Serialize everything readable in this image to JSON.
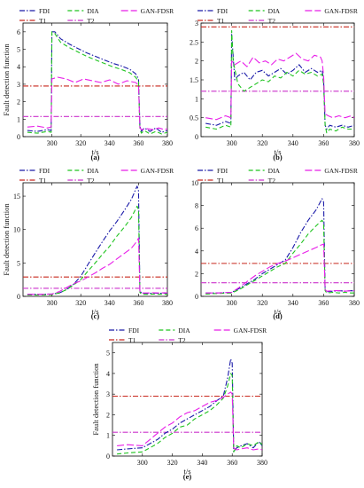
{
  "chart_data": [
    {
      "type": "line",
      "panel": "a",
      "xlabel": "t/s",
      "ylabel": "Fault detection function",
      "xlim": [
        280,
        380
      ],
      "ylim": [
        0,
        6.5
      ],
      "xticks": [
        300,
        320,
        340,
        360,
        380
      ],
      "yticks": [
        0,
        1,
        2,
        3,
        4,
        5,
        6
      ],
      "thresholds": {
        "T1": 2.9,
        "T2": 1.15
      },
      "series": [
        {
          "name": "FDI",
          "x": [
            283,
            290,
            297,
            299.5,
            300,
            302,
            306,
            312,
            318,
            324,
            330,
            336,
            342,
            348,
            354,
            358,
            360,
            361,
            362,
            364,
            368,
            372,
            376,
            380
          ],
          "y": [
            0.35,
            0.3,
            0.4,
            0.35,
            6.0,
            6.0,
            5.6,
            5.3,
            5.05,
            4.8,
            4.6,
            4.4,
            4.2,
            4.05,
            3.85,
            3.6,
            3.3,
            0.6,
            0.3,
            0.5,
            0.3,
            0.5,
            0.25,
            0.35
          ]
        },
        {
          "name": "DIA",
          "x": [
            283,
            290,
            297,
            299.5,
            300,
            302,
            306,
            312,
            318,
            324,
            330,
            336,
            342,
            348,
            354,
            358,
            360,
            361,
            362,
            364,
            368,
            372,
            376,
            380
          ],
          "y": [
            0.25,
            0.2,
            0.3,
            0.25,
            6.0,
            5.9,
            5.4,
            5.1,
            4.85,
            4.6,
            4.4,
            4.2,
            4.0,
            3.85,
            3.65,
            3.4,
            3.15,
            0.4,
            0.2,
            0.35,
            0.15,
            0.3,
            0.15,
            0.25
          ]
        },
        {
          "name": "GAN-FDSR",
          "x": [
            283,
            290,
            297,
            299.5,
            300,
            304,
            310,
            316,
            322,
            328,
            334,
            340,
            346,
            352,
            358,
            360,
            361,
            362,
            366,
            370,
            374,
            378,
            380
          ],
          "y": [
            0.55,
            0.6,
            0.5,
            0.55,
            3.3,
            3.4,
            3.3,
            3.1,
            3.3,
            3.2,
            3.1,
            3.25,
            3.0,
            3.2,
            3.1,
            2.95,
            0.5,
            0.4,
            0.45,
            0.4,
            0.5,
            0.4,
            0.45
          ]
        }
      ]
    },
    {
      "type": "line",
      "panel": "b",
      "xlabel": "t/s",
      "ylabel": "",
      "xlim": [
        280,
        380
      ],
      "ylim": [
        0,
        3
      ],
      "xticks": [
        300,
        320,
        340,
        360,
        380
      ],
      "yticks": [
        0,
        0.5,
        1,
        1.5,
        2,
        2.5,
        3
      ],
      "thresholds": {
        "T1": 2.9,
        "T2": 1.2
      },
      "series": [
        {
          "name": "FDI",
          "x": [
            283,
            290,
            296,
            299.5,
            300,
            302,
            304,
            308,
            312,
            316,
            320,
            324,
            328,
            332,
            336,
            340,
            344,
            348,
            352,
            356,
            359,
            360,
            361,
            362,
            364,
            368,
            372,
            376,
            380
          ],
          "y": [
            0.35,
            0.3,
            0.4,
            0.35,
            2.7,
            1.5,
            1.6,
            1.7,
            1.5,
            1.7,
            1.75,
            1.6,
            1.7,
            1.8,
            1.65,
            1.75,
            1.9,
            1.7,
            1.8,
            1.7,
            1.75,
            1.5,
            0.3,
            0.2,
            0.3,
            0.25,
            0.3,
            0.25,
            0.3
          ]
        },
        {
          "name": "DIA",
          "x": [
            283,
            290,
            296,
            299.5,
            300,
            301,
            304,
            308,
            312,
            316,
            320,
            324,
            328,
            332,
            336,
            340,
            344,
            348,
            352,
            356,
            359,
            360,
            361,
            362,
            364,
            368,
            372,
            376,
            380
          ],
          "y": [
            0.25,
            0.2,
            0.3,
            0.25,
            2.8,
            2.0,
            1.4,
            1.2,
            1.3,
            1.4,
            1.5,
            1.45,
            1.6,
            1.55,
            1.7,
            1.6,
            1.75,
            1.65,
            1.7,
            1.6,
            1.65,
            1.4,
            0.3,
            0.1,
            0.2,
            0.15,
            0.25,
            0.2,
            0.2
          ]
        },
        {
          "name": "GAN-FDSR",
          "x": [
            283,
            290,
            296,
            299.5,
            300,
            302,
            306,
            310,
            314,
            318,
            322,
            326,
            330,
            334,
            338,
            342,
            346,
            350,
            354,
            358,
            359,
            360,
            361,
            363,
            366,
            370,
            374,
            378,
            380
          ],
          "y": [
            0.5,
            0.45,
            0.55,
            0.5,
            2.0,
            1.9,
            2.0,
            1.85,
            2.1,
            1.95,
            2.0,
            1.9,
            2.05,
            2.0,
            2.1,
            2.2,
            2.05,
            2.0,
            2.15,
            2.1,
            2.0,
            1.6,
            0.6,
            0.55,
            0.5,
            0.55,
            0.5,
            0.55,
            0.5
          ]
        }
      ]
    },
    {
      "type": "line",
      "panel": "c",
      "xlabel": "t/s",
      "ylabel": "Fault detection function",
      "xlim": [
        280,
        380
      ],
      "ylim": [
        0,
        17
      ],
      "xticks": [
        300,
        320,
        340,
        360,
        380
      ],
      "yticks": [
        0,
        5,
        10,
        15
      ],
      "thresholds": {
        "T1": 2.9,
        "T2": 1.2
      },
      "series": [
        {
          "name": "FDI",
          "x": [
            283,
            290,
            300,
            305,
            310,
            315,
            320,
            325,
            330,
            335,
            340,
            345,
            350,
            355,
            359,
            360,
            361,
            362,
            366,
            370,
            374,
            378,
            380
          ],
          "y": [
            0.3,
            0.3,
            0.35,
            0.5,
            1.0,
            1.8,
            3.0,
            4.8,
            6.5,
            8.2,
            9.8,
            11.2,
            12.8,
            14.5,
            16.5,
            15.8,
            0.8,
            0.5,
            0.4,
            0.5,
            0.45,
            0.5,
            0.45
          ]
        },
        {
          "name": "DIA",
          "x": [
            283,
            290,
            300,
            305,
            310,
            315,
            320,
            325,
            330,
            335,
            340,
            345,
            350,
            355,
            359,
            360,
            361,
            362,
            366,
            370,
            374,
            378,
            380
          ],
          "y": [
            0.2,
            0.2,
            0.25,
            0.5,
            1.0,
            1.7,
            2.5,
            3.8,
            5.0,
            6.3,
            7.5,
            9.0,
            10.3,
            11.8,
            13.5,
            13.0,
            0.6,
            0.3,
            0.3,
            0.35,
            0.3,
            0.35,
            0.3
          ]
        },
        {
          "name": "GAN-FDSR",
          "x": [
            283,
            290,
            300,
            305,
            310,
            315,
            320,
            325,
            330,
            335,
            340,
            345,
            350,
            355,
            358,
            360,
            361,
            362,
            366,
            370,
            374,
            378,
            380
          ],
          "y": [
            0.3,
            0.3,
            0.35,
            0.7,
            1.3,
            1.9,
            2.3,
            2.9,
            3.5,
            4.2,
            4.8,
            5.6,
            6.4,
            7.2,
            8.0,
            8.7,
            0.8,
            0.5,
            0.5,
            0.55,
            0.5,
            0.55,
            0.5
          ]
        }
      ]
    },
    {
      "type": "line",
      "panel": "d",
      "xlabel": "t/s",
      "ylabel": "",
      "xlim": [
        280,
        380
      ],
      "ylim": [
        0,
        10
      ],
      "xticks": [
        300,
        320,
        340,
        360,
        380
      ],
      "yticks": [
        0,
        2,
        4,
        6,
        8,
        10
      ],
      "thresholds": {
        "T1": 2.9,
        "T2": 1.2
      },
      "series": [
        {
          "name": "FDI",
          "x": [
            283,
            290,
            300,
            305,
            310,
            315,
            320,
            325,
            330,
            335,
            340,
            345,
            350,
            355,
            359,
            360,
            361,
            362,
            366,
            370,
            374,
            378,
            380
          ],
          "y": [
            0.3,
            0.3,
            0.35,
            0.7,
            1.1,
            1.5,
            2.0,
            2.4,
            2.8,
            3.2,
            4.3,
            5.6,
            6.7,
            7.6,
            8.6,
            8.3,
            0.6,
            0.4,
            0.45,
            0.5,
            0.45,
            0.5,
            0.45
          ]
        },
        {
          "name": "DIA",
          "x": [
            283,
            290,
            300,
            305,
            310,
            315,
            320,
            325,
            330,
            335,
            340,
            345,
            350,
            355,
            359,
            360,
            361,
            362,
            366,
            370,
            374,
            378,
            380
          ],
          "y": [
            0.2,
            0.25,
            0.3,
            0.6,
            1.0,
            1.4,
            1.8,
            2.2,
            2.6,
            2.9,
            3.8,
            4.6,
            5.5,
            6.2,
            6.7,
            6.4,
            0.5,
            0.3,
            0.35,
            0.3,
            0.35,
            0.3,
            0.3
          ]
        },
        {
          "name": "GAN-FDSR",
          "x": [
            283,
            290,
            300,
            305,
            310,
            315,
            320,
            325,
            330,
            335,
            340,
            345,
            350,
            355,
            358,
            360,
            361,
            362,
            366,
            370,
            374,
            378,
            380
          ],
          "y": [
            0.3,
            0.3,
            0.35,
            0.8,
            1.3,
            1.8,
            2.2,
            2.6,
            2.9,
            3.1,
            3.4,
            3.7,
            4.0,
            4.3,
            4.5,
            4.6,
            0.6,
            0.45,
            0.5,
            0.5,
            0.45,
            0.5,
            0.5
          ]
        }
      ]
    },
    {
      "type": "line",
      "panel": "e",
      "xlabel": "t/s",
      "ylabel": "Fault detection function",
      "xlim": [
        280,
        380
      ],
      "ylim": [
        0,
        5.5
      ],
      "xticks": [
        300,
        320,
        340,
        360,
        380
      ],
      "yticks": [
        0,
        1,
        2,
        3,
        4,
        5
      ],
      "thresholds": {
        "T1": 2.9,
        "T2": 1.15
      },
      "series": [
        {
          "name": "FDI",
          "x": [
            283,
            290,
            300,
            305,
            310,
            315,
            320,
            325,
            330,
            335,
            340,
            345,
            350,
            354,
            357,
            359,
            360,
            361,
            363,
            366,
            370,
            374,
            378,
            380
          ],
          "y": [
            0.3,
            0.35,
            0.4,
            0.6,
            0.8,
            1.1,
            1.3,
            1.6,
            1.8,
            2.0,
            2.2,
            2.4,
            2.7,
            2.9,
            3.8,
            4.7,
            4.5,
            0.2,
            0.4,
            0.5,
            0.6,
            0.4,
            0.7,
            0.5
          ]
        },
        {
          "name": "DIA",
          "x": [
            283,
            290,
            300,
            305,
            310,
            315,
            320,
            325,
            330,
            335,
            340,
            345,
            350,
            354,
            357,
            359,
            360,
            361,
            363,
            366,
            370,
            374,
            378,
            380
          ],
          "y": [
            0.1,
            0.15,
            0.2,
            0.4,
            0.6,
            0.9,
            1.1,
            1.4,
            1.5,
            1.8,
            2.0,
            2.2,
            2.5,
            2.8,
            3.4,
            4.0,
            3.9,
            0.2,
            0.5,
            0.4,
            0.6,
            0.5,
            0.7,
            0.55
          ]
        },
        {
          "name": "GAN-FDSR",
          "x": [
            283,
            290,
            300,
            305,
            310,
            315,
            320,
            325,
            330,
            335,
            340,
            345,
            350,
            354,
            357,
            359,
            360,
            361,
            363,
            366,
            370,
            374,
            378,
            380
          ],
          "y": [
            0.5,
            0.55,
            0.5,
            0.8,
            1.1,
            1.4,
            1.6,
            1.9,
            2.1,
            2.2,
            2.4,
            2.6,
            2.7,
            2.85,
            3.0,
            3.1,
            3.0,
            0.4,
            0.3,
            0.35,
            0.4,
            0.3,
            0.35,
            0.3
          ]
        }
      ]
    }
  ],
  "legend": {
    "series": [
      "FDI",
      "DIA",
      "GAN-FDSR"
    ],
    "thresholds": [
      "T1",
      "T2"
    ]
  },
  "captions": [
    "(a)",
    "(b)",
    "(c)",
    "(d)",
    "(e)"
  ],
  "colors": {
    "FDI": "#1a1aa8",
    "DIA": "#1fc41f",
    "GAN-FDSR": "#e81ee8",
    "T1": "#c8281e",
    "T2": "#cc33cc"
  }
}
